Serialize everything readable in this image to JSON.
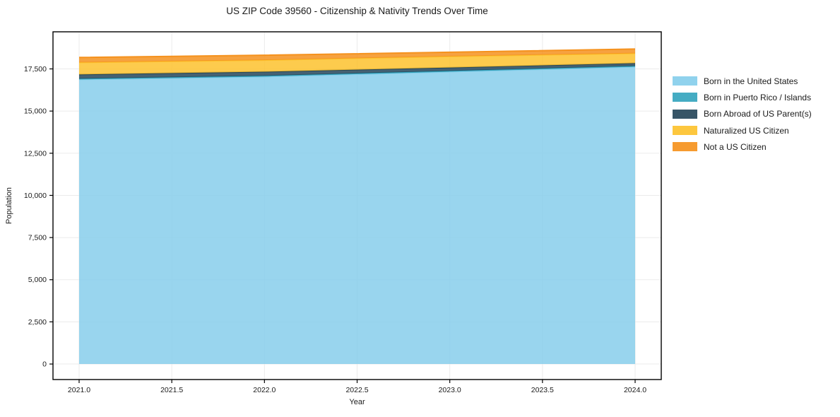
{
  "title": "US ZIP Code 39560 - Citizenship & Nativity Trends Over Time",
  "chart_data": {
    "type": "area",
    "stacked": true,
    "title": "US ZIP Code 39560 - Citizenship & Nativity Trends Over Time",
    "xlabel": "Year",
    "ylabel": "Population",
    "x": [
      2021,
      2022,
      2023,
      2024
    ],
    "series": [
      {
        "name": "Born in the United States",
        "color": "#87CEEB",
        "values": [
          16870,
          17040,
          17330,
          17620
        ]
      },
      {
        "name": "Born in Puerto Rico / Islands",
        "color": "#35A5BE",
        "values": [
          50,
          50,
          50,
          50
        ]
      },
      {
        "name": "Born Abroad of US Parent(s)",
        "color": "#26475A",
        "values": [
          250,
          240,
          200,
          170
        ]
      },
      {
        "name": "Naturalized US Citizen",
        "color": "#FDC22E",
        "values": [
          710,
          690,
          660,
          580
        ]
      },
      {
        "name": "Not a US Citizen",
        "color": "#F5921E",
        "values": [
          300,
          290,
          250,
          260
        ]
      }
    ],
    "x_ticks": [
      2021.0,
      2021.5,
      2022.0,
      2022.5,
      2023.0,
      2023.5,
      2024.0
    ],
    "x_tick_labels": [
      "2021.0",
      "2021.5",
      "2022.0",
      "2022.5",
      "2023.0",
      "2023.5",
      "2024.0"
    ],
    "y_ticks": [
      0,
      2500,
      5000,
      7500,
      10000,
      12500,
      15000,
      17500
    ],
    "y_tick_labels": [
      "0",
      "2,500",
      "5,000",
      "7,500",
      "10,000",
      "12,500",
      "15,000",
      "17,500"
    ],
    "xlim": [
      2020.859,
      2024.141
    ],
    "ylim": [
      -920,
      19700
    ],
    "grid": true,
    "legend_position": "right-outside",
    "fill_opacity": 0.85,
    "grid_color": "#ebebeb",
    "spine_color": "#000000",
    "text_color": "#1a1a1a"
  }
}
